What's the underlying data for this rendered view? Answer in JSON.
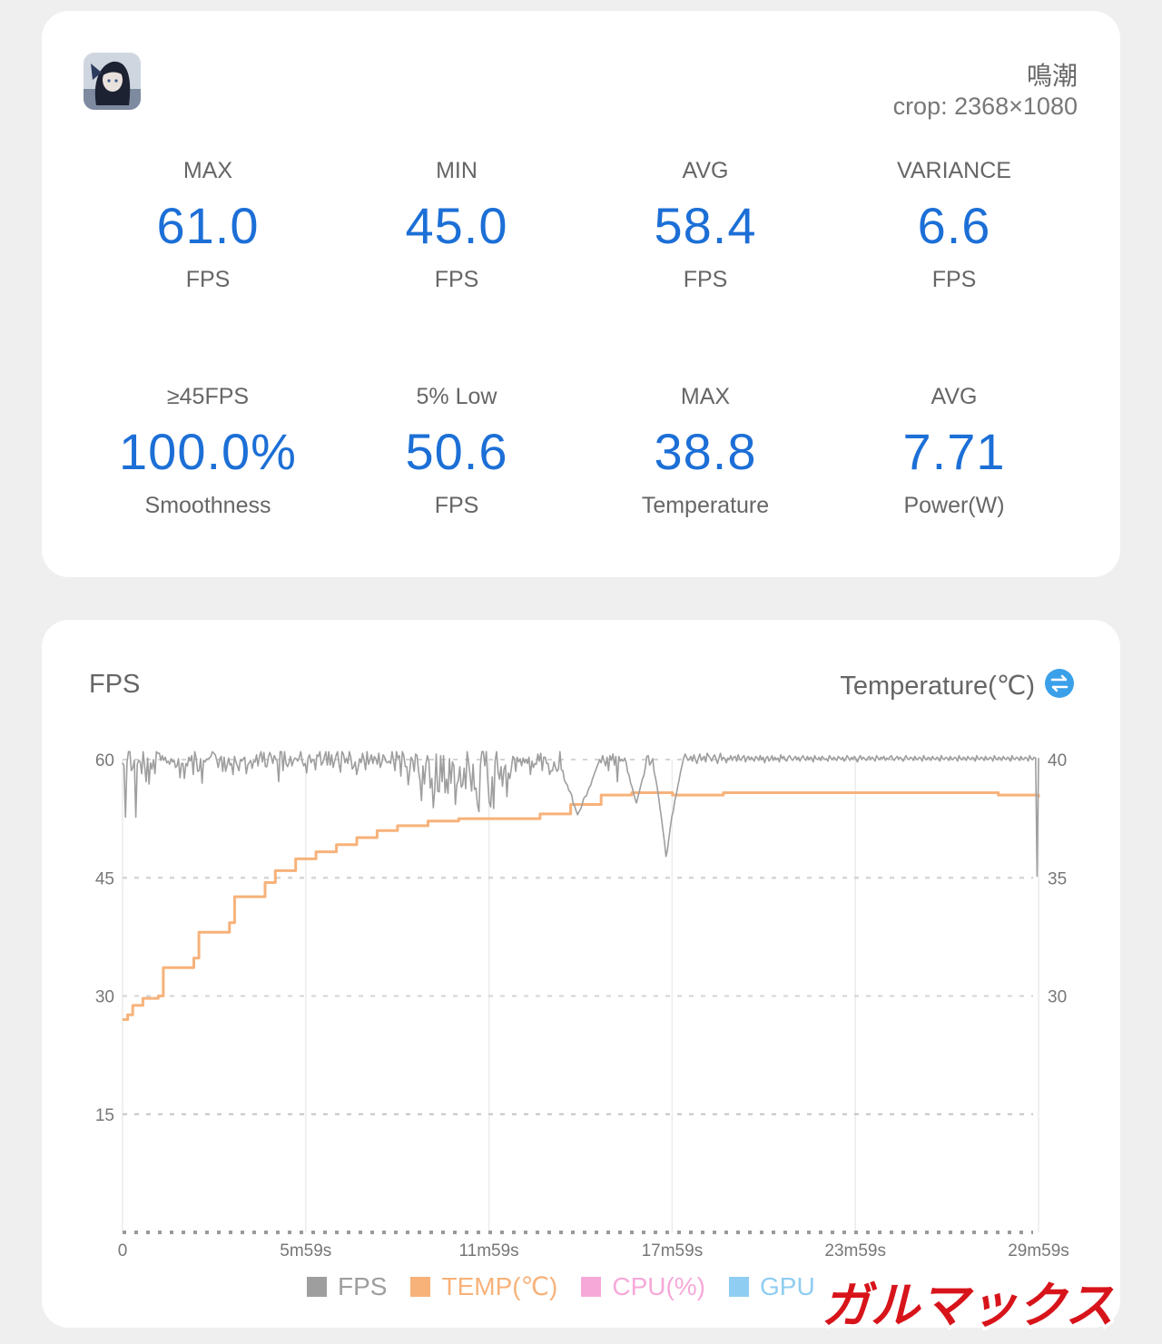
{
  "summary": {
    "app_name": "鳴潮",
    "crop": "crop: 2368×1080",
    "stats": [
      {
        "label": "MAX",
        "value": "61.0",
        "unit": "FPS"
      },
      {
        "label": "MIN",
        "value": "45.0",
        "unit": "FPS"
      },
      {
        "label": "AVG",
        "value": "58.4",
        "unit": "FPS"
      },
      {
        "label": "VARIANCE",
        "value": "6.6",
        "unit": "FPS"
      },
      {
        "label": "≥45FPS",
        "value": "100.0%",
        "unit": "Smoothness"
      },
      {
        "label": "5% Low",
        "value": "50.6",
        "unit": "FPS"
      },
      {
        "label": "MAX",
        "value": "38.8",
        "unit": "Temperature"
      },
      {
        "label": "AVG",
        "value": "7.71",
        "unit": "Power(W)"
      }
    ]
  },
  "chart_header": {
    "left_title": "FPS",
    "right_title": "Temperature(℃)"
  },
  "legend": [
    {
      "label": "FPS",
      "color": "#9e9e9e"
    },
    {
      "label": "TEMP(℃)",
      "color": "#f7b27a"
    },
    {
      "label": "CPU(%)",
      "color": "#f6a9d9"
    },
    {
      "label": "GPU",
      "color": "#8fcdf2"
    }
  ],
  "watermark": {
    "text": "ガルマックス",
    "color": "#d8141b"
  },
  "chart_data": {
    "type": "line",
    "x_tick_labels": [
      "0",
      "5m59s",
      "11m59s",
      "17m59s",
      "23m59s",
      "29m59s"
    ],
    "x_range_seconds": [
      0,
      1799
    ],
    "y_left": {
      "label": "FPS",
      "range": [
        0,
        60
      ],
      "ticks": [
        "15",
        "30",
        "45",
        "60"
      ]
    },
    "y_right": {
      "label": "Temperature(℃)",
      "range": [
        20,
        40
      ],
      "ticks": [
        "30",
        "35",
        "40"
      ]
    },
    "grid": true,
    "legend_position": "bottom",
    "series": [
      {
        "name": "TEMP(℃)",
        "axis": "right",
        "color": "#f7b27a",
        "points": [
          [
            0,
            29.0
          ],
          [
            10,
            29.2
          ],
          [
            20,
            29.6
          ],
          [
            40,
            29.9
          ],
          [
            70,
            30.0
          ],
          [
            80,
            31.2
          ],
          [
            140,
            31.6
          ],
          [
            150,
            32.7
          ],
          [
            210,
            33.1
          ],
          [
            220,
            34.2
          ],
          [
            280,
            34.8
          ],
          [
            300,
            35.3
          ],
          [
            340,
            35.8
          ],
          [
            380,
            36.1
          ],
          [
            420,
            36.4
          ],
          [
            460,
            36.7
          ],
          [
            500,
            37.0
          ],
          [
            540,
            37.2
          ],
          [
            600,
            37.4
          ],
          [
            660,
            37.5
          ],
          [
            760,
            37.5
          ],
          [
            820,
            37.7
          ],
          [
            880,
            38.1
          ],
          [
            940,
            38.5
          ],
          [
            1000,
            38.6
          ],
          [
            1080,
            38.5
          ],
          [
            1180,
            38.6
          ],
          [
            1300,
            38.6
          ],
          [
            1500,
            38.6
          ],
          [
            1720,
            38.5
          ],
          [
            1799,
            38.4
          ]
        ]
      },
      {
        "name": "FPS",
        "axis": "left",
        "color": "#9e9e9e",
        "sampling": "one value per 3 seconds, 0s to 1799s",
        "values": [
          59.6,
          59.2,
          52.7,
          59.6,
          61.0,
          61.0,
          58.6,
          59.0,
          59.9,
          52.7,
          59.4,
          59.9,
          59.7,
          58.2,
          61.0,
          59.2,
          57.2,
          60.2,
          56.9,
          59.6,
          58.8,
          60.0,
          58.2,
          61.0,
          60.8,
          60.8,
          59.9,
          60.5,
          59.9,
          60.3,
          59.6,
          59.8,
          59.4,
          60.1,
          59.7,
          59.9,
          59.0,
          59.2,
          60.1,
          57.7,
          59.5,
          59.5,
          57.6,
          59.5,
          59.2,
          60.3,
          59.8,
          60.5,
          58.1,
          61.0,
          60.2,
          58.5,
          58.6,
          60.1,
          57.0,
          59.9,
          59.7,
          60.0,
          60.1,
          60.2,
          60.4,
          61.0,
          60.8,
          60.6,
          59.9,
          59.0,
          60.1,
          60.4,
          58.5,
          60.3,
          58.5,
          59.3,
          60.2,
          59.3,
          59.5,
          58.1,
          60.4,
          59.7,
          59.2,
          58.6,
          60.0,
          59.8,
          60.1,
          60.3,
          58.2,
          59.3,
          59.6,
          59.9,
          58.9,
          59.8,
          59.7,
          60.6,
          59.2,
          60.4,
          61.0,
          59.7,
          60.9,
          59.1,
          59.1,
          60.3,
          60.9,
          60.4,
          59.5,
          60.5,
          60.1,
          59.8,
          57.2,
          61.0,
          61.0,
          58.6,
          61.0,
          59.5,
          59.1,
          59.6,
          60.4,
          59.2,
          59.8,
          60.2,
          60.1,
          59.8,
          60.3,
          61.0,
          59.8,
          59.2,
          59.5,
          58.3,
          60.2,
          60.6,
          59.6,
          60.0,
          59.9,
          58.7,
          60.6,
          60.4,
          61.0,
          59.3,
          59.6,
          60.3,
          61.0,
          59.3,
          61.0,
          59.3,
          60.6,
          59.0,
          59.8,
          60.5,
          61.0,
          59.4,
          58.4,
          61.0,
          60.7,
          59.6,
          60.2,
          59.5,
          61.0,
          60.3,
          58.8,
          59.1,
          59.7,
          58.1,
          59.0,
          60.1,
          59.6,
          60.8,
          60.0,
          58.7,
          61.0,
          59.4,
          60.0,
          60.6,
          59.5,
          60.4,
          60.1,
          59.4,
          60.8,
          59.0,
          59.6,
          60.6,
          60.3,
          59.7,
          59.6,
          59.8,
          59.5,
          61.0,
          59.9,
          58.6,
          61.0,
          60.2,
          60.5,
          57.9,
          61.0,
          60.5,
          59.1,
          59.1,
          56.8,
          58.5,
          60.3,
          59.9,
          58.5,
          60.7,
          60.5,
          58.5,
          57.3,
          54.8,
          59.2,
          56.9,
          59.5,
          60.5,
          59.8,
          56.4,
          57.6,
          53.9,
          56.2,
          60.7,
          56.0,
          55.9,
          60.5,
          57.2,
          60.5,
          55.8,
          57.5,
          55.7,
          60.1,
          57.0,
          59.7,
          59.2,
          54.3,
          56.8,
          57.4,
          59.1,
          56.5,
          56.8,
          58.9,
          56.3,
          61.0,
          59.6,
          58.0,
          56.0,
          59.4,
          56.2,
          56.4,
          54.3,
          53.4,
          59.3,
          61.0,
          61.0,
          59.2,
          61.0,
          57.4,
          54.6,
          54.0,
          57.8,
          53.8,
          59.8,
          61.0,
          58.4,
          57.5,
          59.1,
          56.6,
          58.7,
          59.3,
          55.3,
          58.3,
          57.6,
          58.9,
          60.4,
          60.2,
          58.5,
          60.3,
          59.7,
          60.1,
          59.2,
          60.2,
          59.6,
          60.0,
          59.5,
          60.3,
          58.1,
          59.8,
          59.0,
          59.5,
          59.4,
          60.7,
          59.8,
          60.8,
          58.6,
          60.3,
          60.3,
          59.5,
          59.5,
          58.1,
          58.6,
          58.6,
          59.7,
          59.0,
          58.5,
          58.8,
          61.0,
          58.7,
          58.6,
          57.4,
          57.0,
          56.8,
          56.1,
          55.9,
          55.5,
          54.4,
          54.1,
          53.5,
          53.0,
          53.4,
          53.7,
          54.2,
          55.0,
          55.3,
          55.4,
          56.0,
          56.5,
          56.8,
          57.5,
          58.0,
          58.5,
          59.0,
          59.5,
          60.0,
          59.6,
          60.5,
          59.8,
          59.2,
          60.3,
          58.6,
          60.5,
          59.9,
          60.7,
          59.3,
          60.4,
          57.2,
          60.4,
          59.8,
          60.0,
          59.8,
          60.2,
          59.6,
          58.4,
          58.0,
          57.0,
          56.5,
          55.8,
          55.0,
          54.5,
          55.3,
          56.0,
          56.8,
          57.5,
          58.0,
          59.0,
          60.4,
          60.5,
          59.3,
          59.7,
          60.1,
          58.4,
          57.6,
          56.5,
          55.2,
          53.8,
          52.5,
          51.0,
          49.5,
          47.7,
          48.5,
          50.0,
          51.5,
          52.8,
          53.5,
          54.8,
          55.5,
          56.6,
          57.5,
          58.5,
          59.3,
          60.2,
          60.7,
          60.3,
          59.9,
          60.1,
          60.4,
          59.8,
          60.6,
          60.0,
          59.5,
          60.2,
          60.7,
          59.9,
          60.2,
          60.4,
          59.7,
          60.8,
          60.5,
          60.2,
          59.8,
          60.3,
          60.6,
          60.1,
          59.5,
          60.2,
          60.8,
          59.9,
          60.3,
          60.1,
          59.6,
          60.2,
          60.0,
          60.5,
          59.9,
          60.3,
          60.4,
          59.8,
          60.6,
          60.1,
          59.9,
          60.3,
          60.5,
          59.7,
          60.2,
          60.4,
          60.0,
          60.3,
          60.1,
          59.8,
          60.4,
          60.2,
          59.9,
          60.5,
          60.0,
          60.3,
          59.6,
          60.2,
          60.4,
          59.8,
          60.1,
          60.5,
          59.9,
          60.3,
          60.0,
          60.2,
          59.7,
          60.6,
          60.1,
          60.4,
          60.0,
          59.8,
          60.3,
          60.5,
          60.1,
          59.9,
          60.2,
          60.4,
          60.0,
          60.3,
          59.8,
          60.2,
          60.5,
          60.1,
          59.9,
          60.4,
          60.0,
          60.3,
          60.2,
          59.7,
          60.5,
          60.1,
          60.0,
          60.3,
          59.9,
          60.4,
          60.2,
          60.0,
          60.1,
          59.8,
          60.5,
          60.2,
          60.0,
          60.3,
          60.1,
          59.9,
          60.4,
          60.2,
          60.0,
          60.3,
          59.8,
          60.1,
          60.5,
          60.2,
          59.9,
          60.3,
          60.0,
          60.4,
          60.1,
          59.7,
          60.2,
          60.5,
          60.0,
          60.3,
          60.1,
          59.9,
          60.2,
          60.4,
          60.0,
          60.3,
          60.1,
          59.8,
          60.5,
          60.2,
          60.0,
          60.3,
          60.1,
          60.4,
          59.9,
          60.2,
          60.0,
          60.3,
          60.5,
          60.1,
          59.9,
          60.2,
          60.4,
          60.0,
          60.3,
          60.1,
          59.8,
          60.2,
          60.5,
          60.1,
          60.0,
          60.3,
          60.2,
          59.9,
          60.4,
          60.1,
          60.0,
          60.3,
          60.2,
          59.8,
          60.5,
          60.1,
          60.0,
          60.3,
          60.2,
          59.9,
          60.4,
          60.1,
          60.0,
          60.3,
          60.2,
          59.8,
          60.5,
          60.1,
          60.0,
          60.3,
          60.2,
          59.9,
          60.4,
          60.1,
          60.0,
          60.3,
          60.2,
          59.8,
          60.5,
          60.1,
          60.0,
          60.3,
          60.2,
          59.9,
          60.4,
          60.1,
          60.0,
          60.3,
          60.2,
          59.8,
          60.5,
          60.1,
          60.0,
          60.3,
          60.2,
          59.9,
          60.4,
          60.1,
          60.0,
          60.3,
          60.2,
          59.8,
          60.5,
          60.1,
          60.0,
          60.3,
          60.2,
          59.9,
          60.4,
          60.1,
          60.0,
          60.3,
          60.2,
          59.8,
          60.5,
          60.1,
          60.0,
          60.3,
          60.2,
          59.9,
          60.4,
          60.1,
          60.0,
          60.3,
          60.2,
          59.8,
          60.5,
          60.1,
          60.0,
          60.3,
          60.2,
          45.2,
          60.2
        ]
      }
    ]
  }
}
